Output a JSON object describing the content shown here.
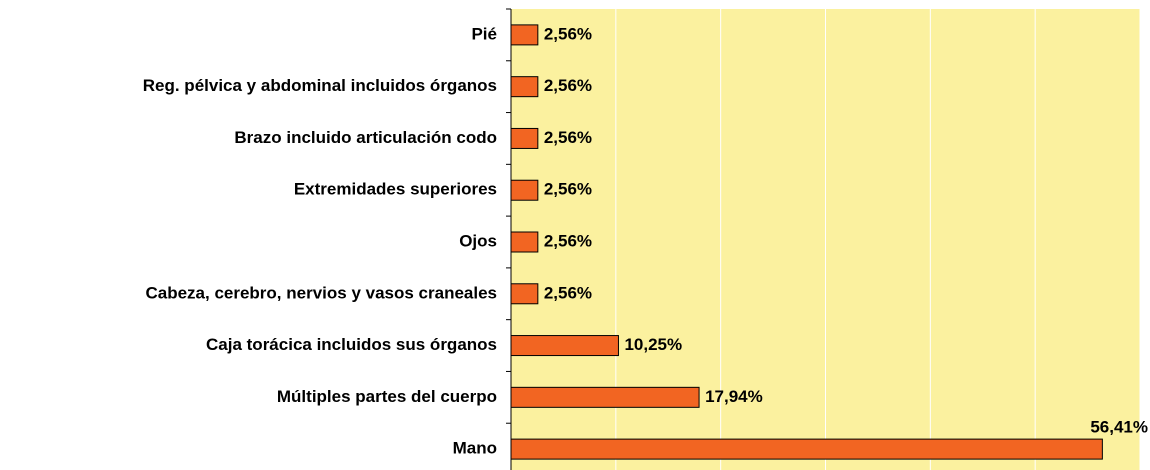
{
  "chart_data": {
    "type": "barh",
    "categories": [
      "Pié",
      "Reg. pélvica y abdominal incluidos órganos",
      "Brazo incluido articulación codo",
      "Extremidades superiores",
      "Ojos",
      "Cabeza, cerebro, nervios y vasos craneales",
      "Caja torácica incluidos sus órganos",
      "Múltiples partes del cuerpo",
      "Mano"
    ],
    "values": [
      2.56,
      2.56,
      2.56,
      2.56,
      2.56,
      2.56,
      10.25,
      17.94,
      56.41
    ],
    "value_labels": [
      "2,56%",
      "2,56%",
      "2,56%",
      "2,56%",
      "2,56%",
      "2,56%",
      "10,25%",
      "17,94%",
      "56,41%"
    ],
    "color": "#f26522",
    "xlim": [
      0,
      60
    ],
    "xticks": [
      0,
      10,
      20,
      30,
      40,
      50,
      60
    ],
    "grid": true
  }
}
